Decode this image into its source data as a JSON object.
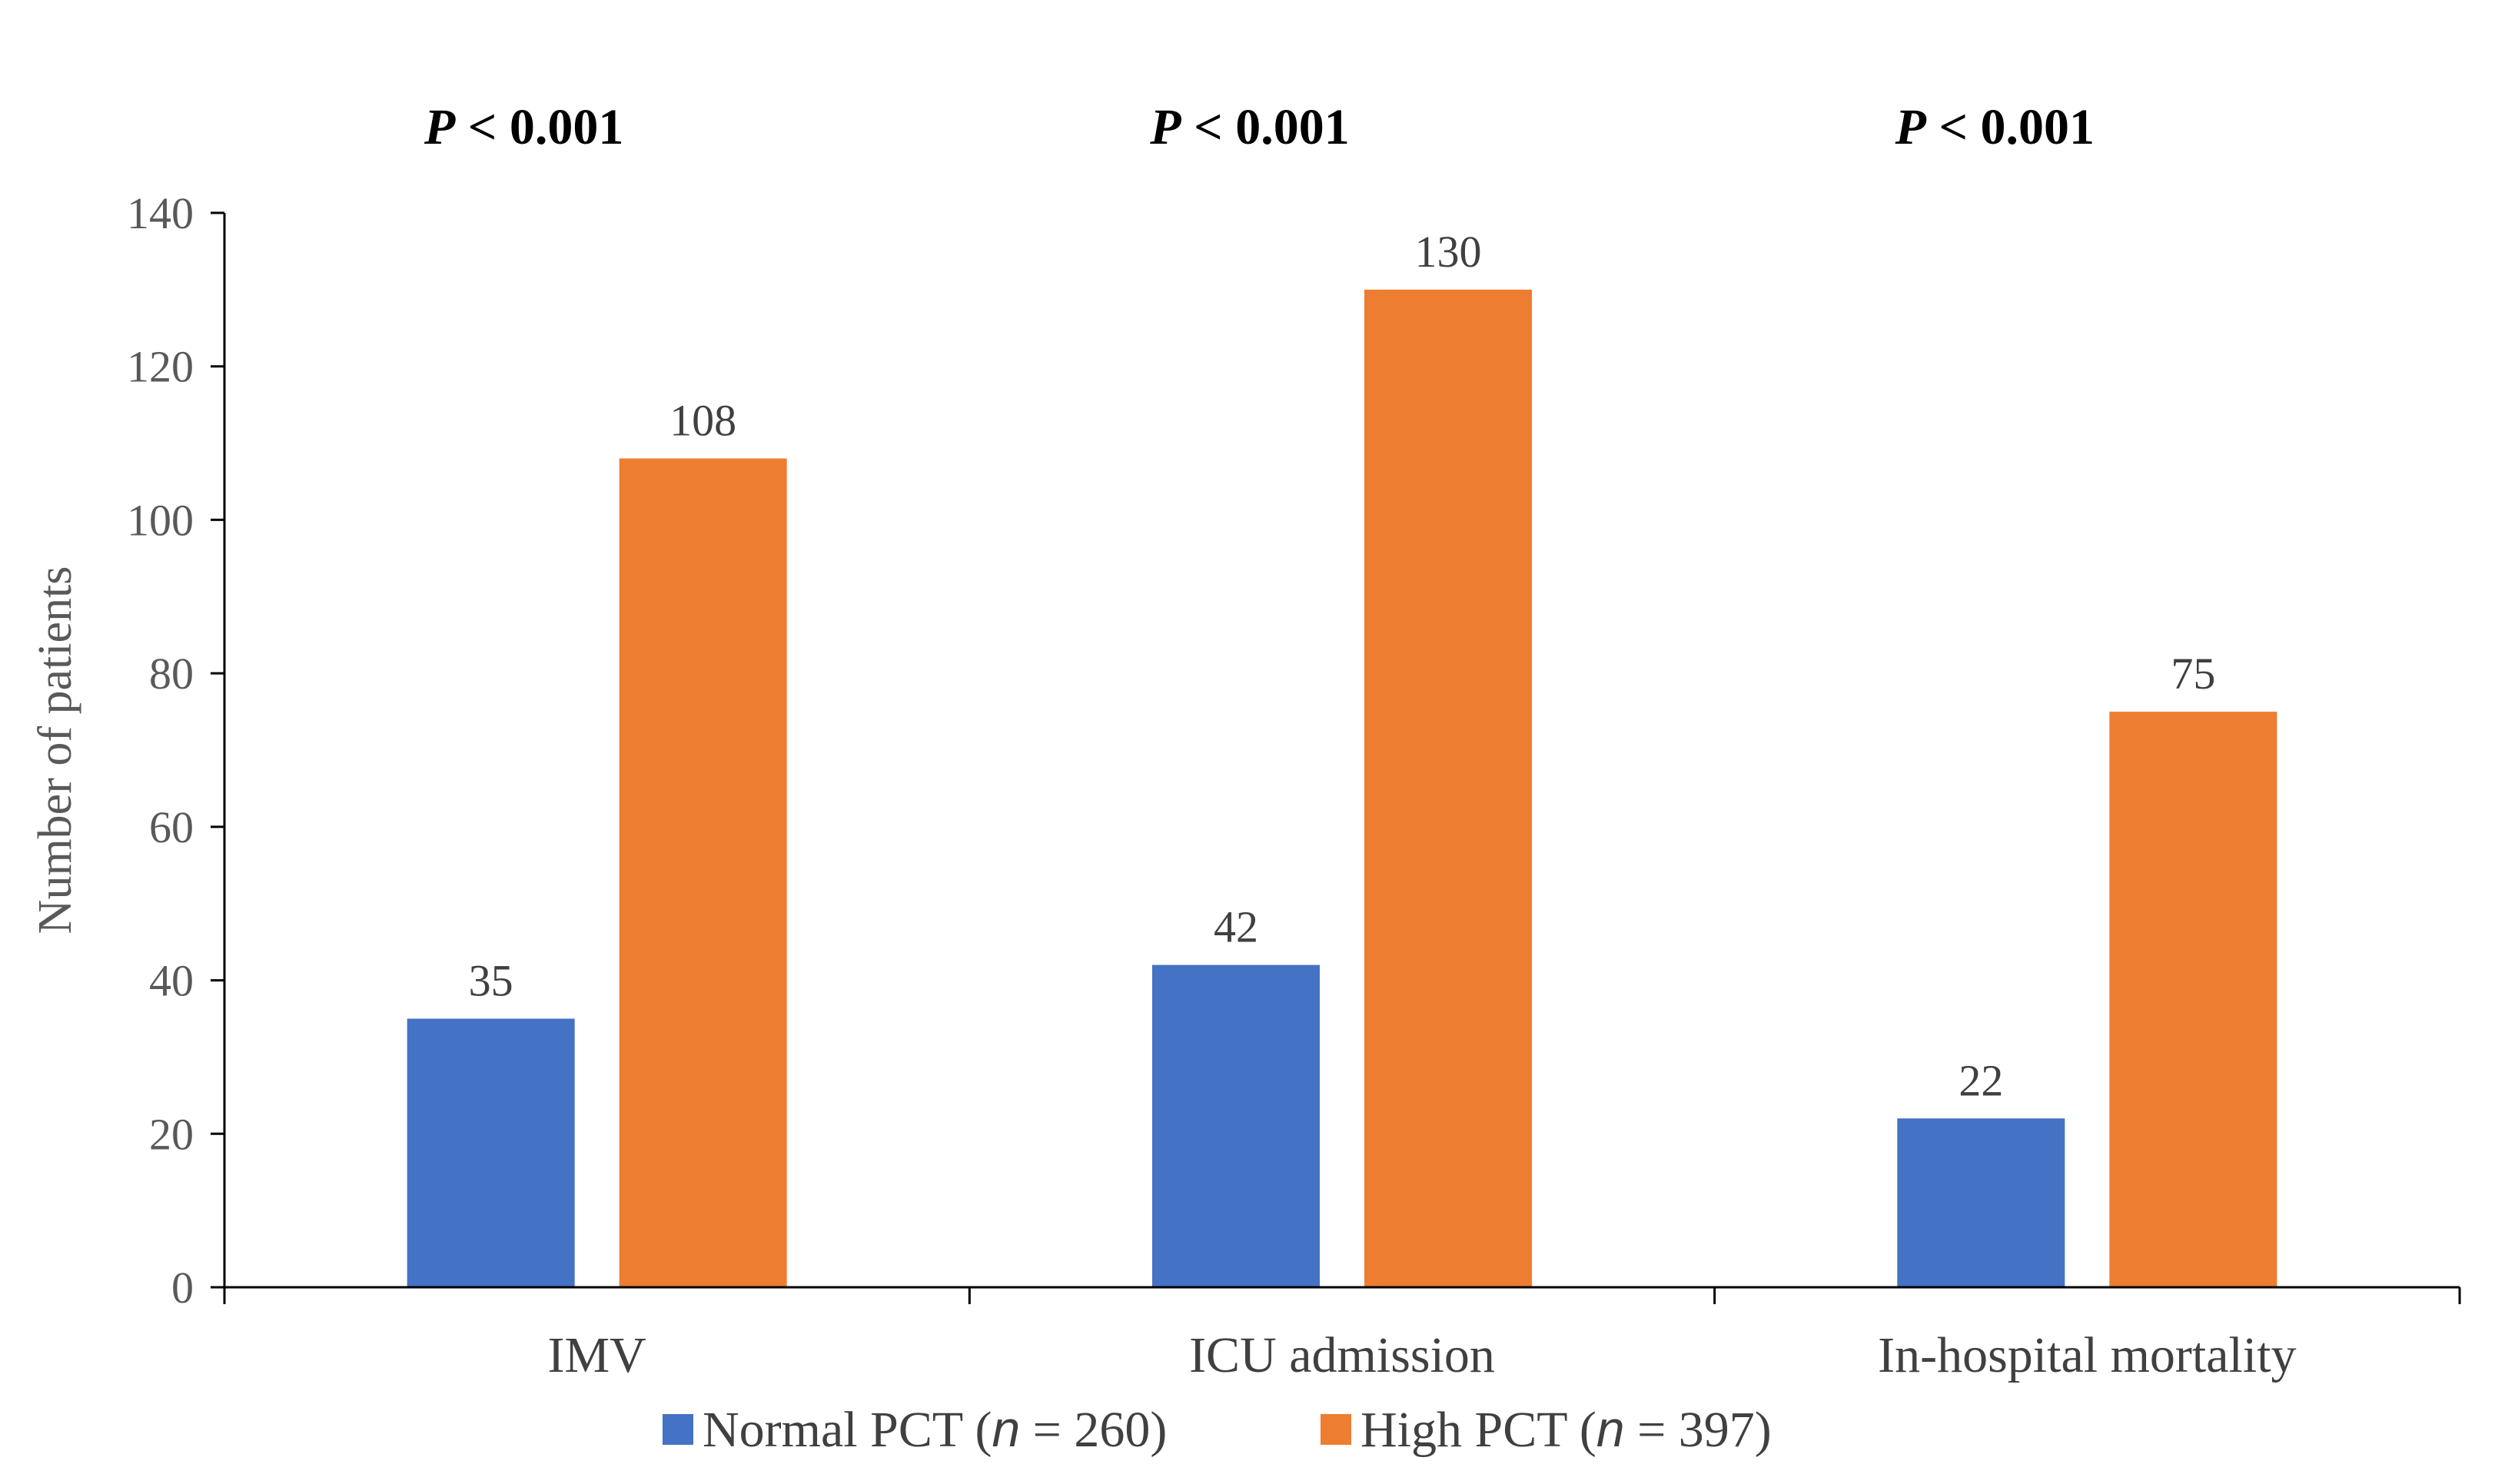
{
  "chart_data": {
    "type": "bar",
    "categories": [
      "IMV",
      "ICU admission",
      "In-hospital mortality"
    ],
    "series": [
      {
        "name": "Normal PCT",
        "n_label": "n",
        "n_value": "260",
        "color": "#4472C4",
        "values": [
          35,
          42,
          22
        ]
      },
      {
        "name": "High PCT",
        "n_label": "n",
        "n_value": "397",
        "color": "#ED7D31",
        "values": [
          108,
          130,
          75
        ]
      }
    ],
    "annotations": [
      "P < 0.001",
      "P < 0.001",
      "P < 0.001"
    ],
    "ylabel": "Number of patients",
    "xlabel": "",
    "ylim": [
      0,
      140
    ],
    "yticks": [
      0,
      20,
      40,
      60,
      80,
      100,
      120,
      140
    ],
    "legend_position": "bottom",
    "grid": false
  }
}
